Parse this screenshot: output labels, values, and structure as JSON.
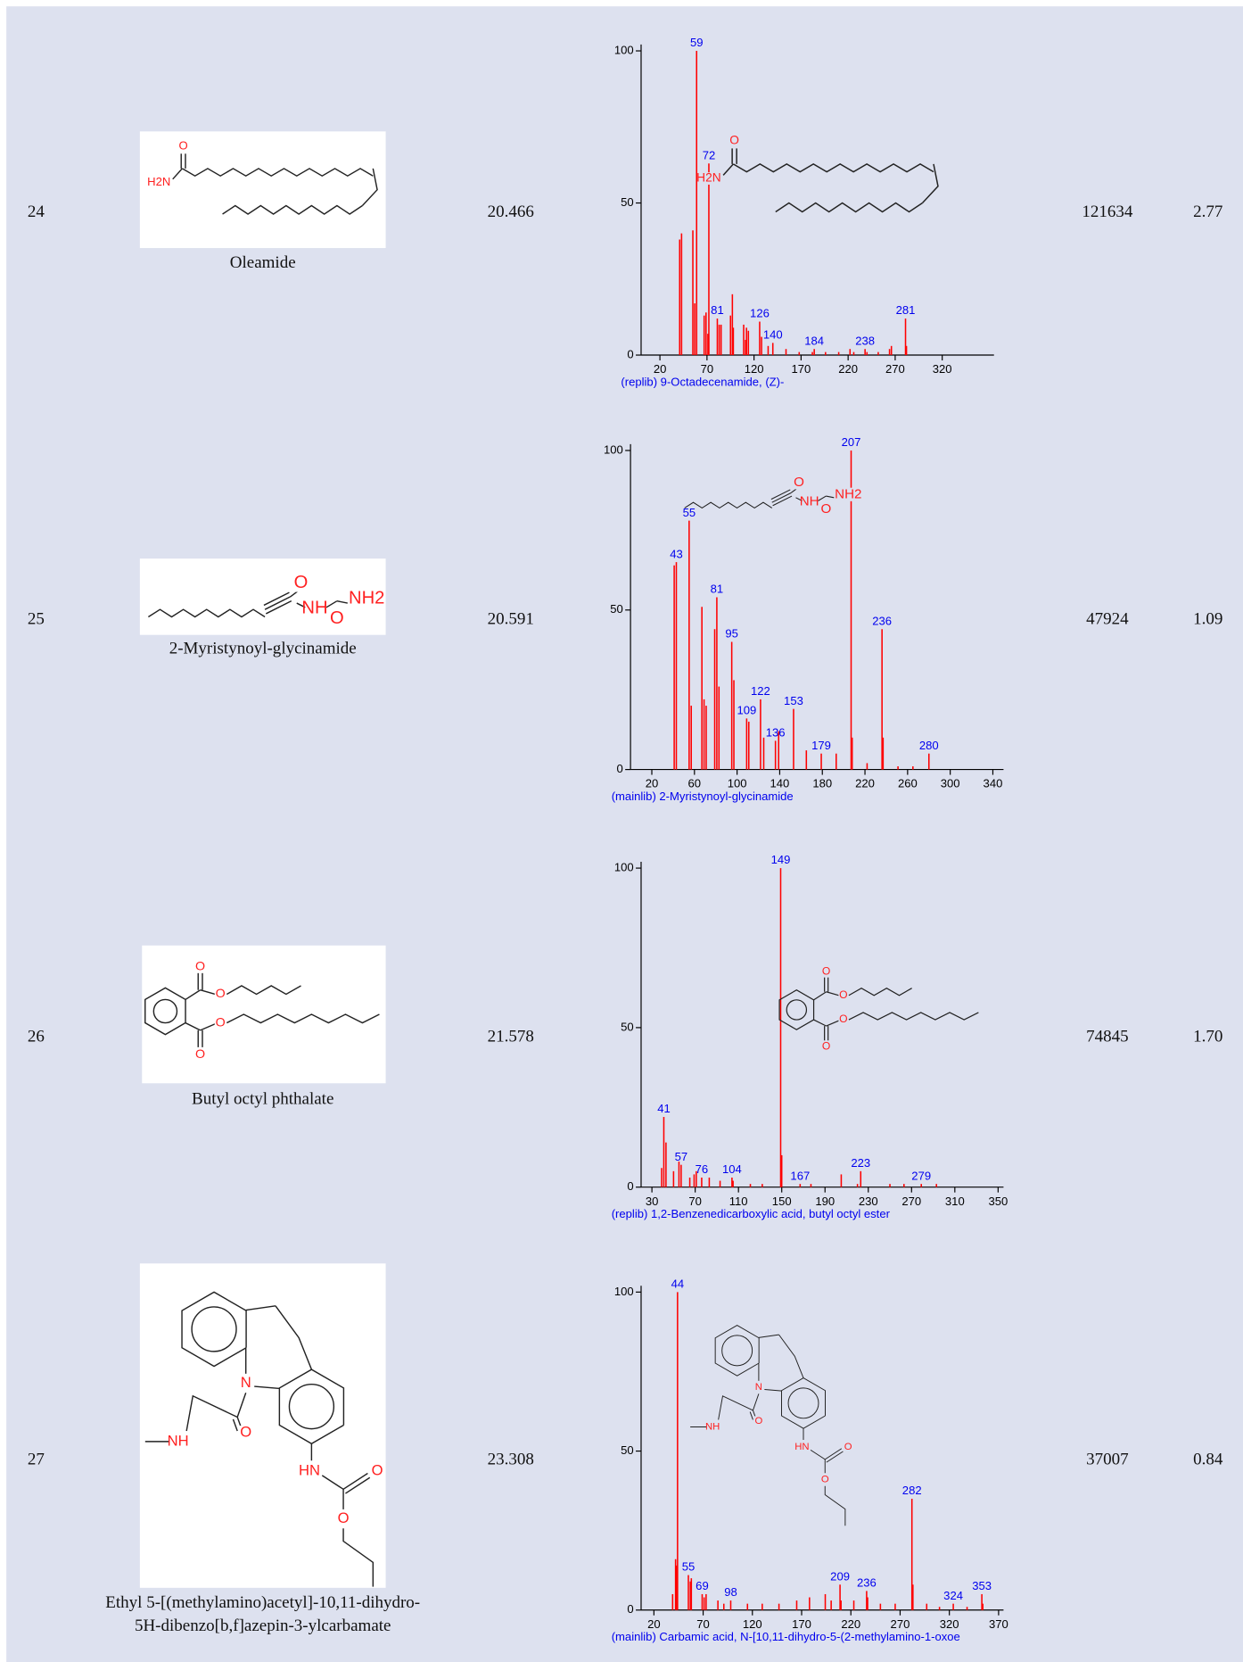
{
  "table": {
    "rows": [
      {
        "no": "24",
        "compound": [
          "Oleamide"
        ],
        "structure_labels": [
          "O",
          "H2N"
        ],
        "rt": "20.466",
        "area": "121634",
        "percent": "2.77",
        "spectrum": {
          "type": "bar",
          "caption": "(replib) 9-Octadecenamide, (Z)-",
          "color": "#ff0000",
          "label_color": "#0000ee",
          "xlim": [
            0,
            375
          ],
          "xticks": [
            20,
            70,
            120,
            170,
            220,
            270,
            320
          ],
          "ylim": [
            0,
            100
          ],
          "yticks": [
            0,
            50,
            100
          ],
          "peaks": {
            "x": [
              59,
              72,
              81,
              126,
              140,
              184,
              238,
              281
            ],
            "values": [
              100,
              63,
              12,
              11,
              4,
              2,
              2,
              12
            ]
          },
          "minor_peaks": {
            "x": [
              41,
              43,
              55,
              57,
              67,
              69,
              71,
              83,
              85,
              95,
              97,
              98,
              109,
              111,
              112,
              114,
              128,
              135,
              154,
              168,
              182,
              196,
              210,
              222,
              226,
              240,
              252,
              264,
              266,
              282
            ],
            "values": [
              38,
              40,
              41,
              17,
              13,
              14,
              7,
              10,
              10,
              13,
              20,
              9,
              10,
              5,
              9,
              8,
              6,
              3,
              2,
              1,
              1,
              1,
              1,
              2,
              1,
              1,
              1,
              2,
              3,
              3
            ]
          }
        }
      },
      {
        "no": "25",
        "compound": [
          "2-Myristynoyl-glycinamide"
        ],
        "structure_labels": [
          "O",
          "NH",
          "NH2",
          "O"
        ],
        "rt": "20.591",
        "area": "47924",
        "percent": "1.09",
        "spectrum": {
          "type": "bar",
          "caption": "(mainlib) 2-Myristynoyl-glycinamide",
          "color": "#ff0000",
          "label_color": "#0000ee",
          "xlim": [
            0,
            350
          ],
          "xticks": [
            20,
            60,
            100,
            140,
            180,
            220,
            260,
            300,
            340
          ],
          "ylim": [
            0,
            100
          ],
          "yticks": [
            0,
            50,
            100
          ],
          "peaks": {
            "x": [
              43,
              55,
              81,
              95,
              109,
              122,
              136,
              153,
              179,
              207,
              236,
              280
            ],
            "values": [
              65,
              78,
              54,
              40,
              16,
              22,
              9,
              19,
              5,
              100,
              44,
              5
            ]
          },
          "minor_peaks": {
            "x": [
              41,
              57,
              67,
              69,
              71,
              79,
              83,
              97,
              111,
              125,
              139,
              165,
              193,
              208,
              222,
              237,
              251,
              265
            ],
            "values": [
              64,
              20,
              51,
              22,
              20,
              44,
              26,
              28,
              15,
              10,
              12,
              6,
              5,
              10,
              2,
              10,
              1,
              1
            ]
          }
        }
      },
      {
        "no": "26",
        "compound": [
          "Butyl octyl phthalate"
        ],
        "structure_labels": [
          "O",
          "O",
          "O",
          "O"
        ],
        "rt": "21.578",
        "area": "74845",
        "percent": "1.70",
        "spectrum": {
          "type": "bar",
          "caption": "(replib) 1,2-Benzenedicarboxylic acid, butyl octyl ester",
          "color": "#ff0000",
          "label_color": "#0000ee",
          "xlim": [
            20,
            355
          ],
          "xticks": [
            30,
            70,
            110,
            150,
            190,
            230,
            270,
            310,
            350
          ],
          "ylim": [
            0,
            100
          ],
          "yticks": [
            0,
            50,
            100
          ],
          "peaks": {
            "x": [
              41,
              57,
              76,
              104,
              149,
              167,
              223,
              279
            ],
            "values": [
              22,
              7,
              3,
              3,
              100,
              1,
              5,
              1
            ]
          },
          "minor_peaks": {
            "x": [
              39,
              43,
              50,
              55,
              65,
              69,
              71,
              83,
              93,
              105,
              121,
              132,
              150,
              177,
              205,
              220,
              250,
              263,
              293
            ],
            "values": [
              6,
              14,
              5,
              8,
              3,
              4,
              5,
              3,
              2,
              2,
              1,
              1,
              10,
              1,
              4,
              1,
              1,
              1,
              1
            ]
          }
        }
      },
      {
        "no": "27",
        "compound": [
          "Ethyl 5-[(methylamino)acetyl]-10,11-dihydro-",
          "5H-dibenzo[b,f]azepin-3-ylcarbamate"
        ],
        "structure_labels": [
          "N",
          "NH",
          "O",
          "HN",
          "O",
          "O"
        ],
        "rt": "23.308",
        "area": "37007",
        "percent": "0.84",
        "spectrum": {
          "type": "bar",
          "caption": "(mainlib) Carbamic acid, N-[10,11-dihydro-5-(2-methylamino-1-oxoe",
          "color": "#ff0000",
          "label_color": "#0000ee",
          "xlim": [
            7,
            375
          ],
          "xticks": [
            20,
            70,
            120,
            170,
            220,
            270,
            320,
            370
          ],
          "ylim": [
            0,
            100
          ],
          "yticks": [
            0,
            50,
            100
          ],
          "peaks": {
            "x": [
              44,
              55,
              69,
              98,
              209,
              236,
              282,
              324,
              353
            ],
            "values": [
              100,
              11,
              5,
              3,
              8,
              6,
              35,
              2,
              5
            ]
          },
          "minor_peaks": {
            "x": [
              39,
              42,
              43,
              57,
              58,
              71,
              73,
              85,
              91,
              115,
              130,
              147,
              165,
              178,
              194,
              200,
              210,
              223,
              237,
              250,
              265,
              283,
              297,
              310,
              338,
              354
            ],
            "values": [
              5,
              16,
              14,
              9,
              10,
              4,
              5,
              3,
              2,
              2,
              2,
              2,
              3,
              4,
              5,
              3,
              3,
              3,
              4,
              2,
              2,
              8,
              2,
              1,
              1,
              2
            ]
          }
        }
      }
    ]
  }
}
